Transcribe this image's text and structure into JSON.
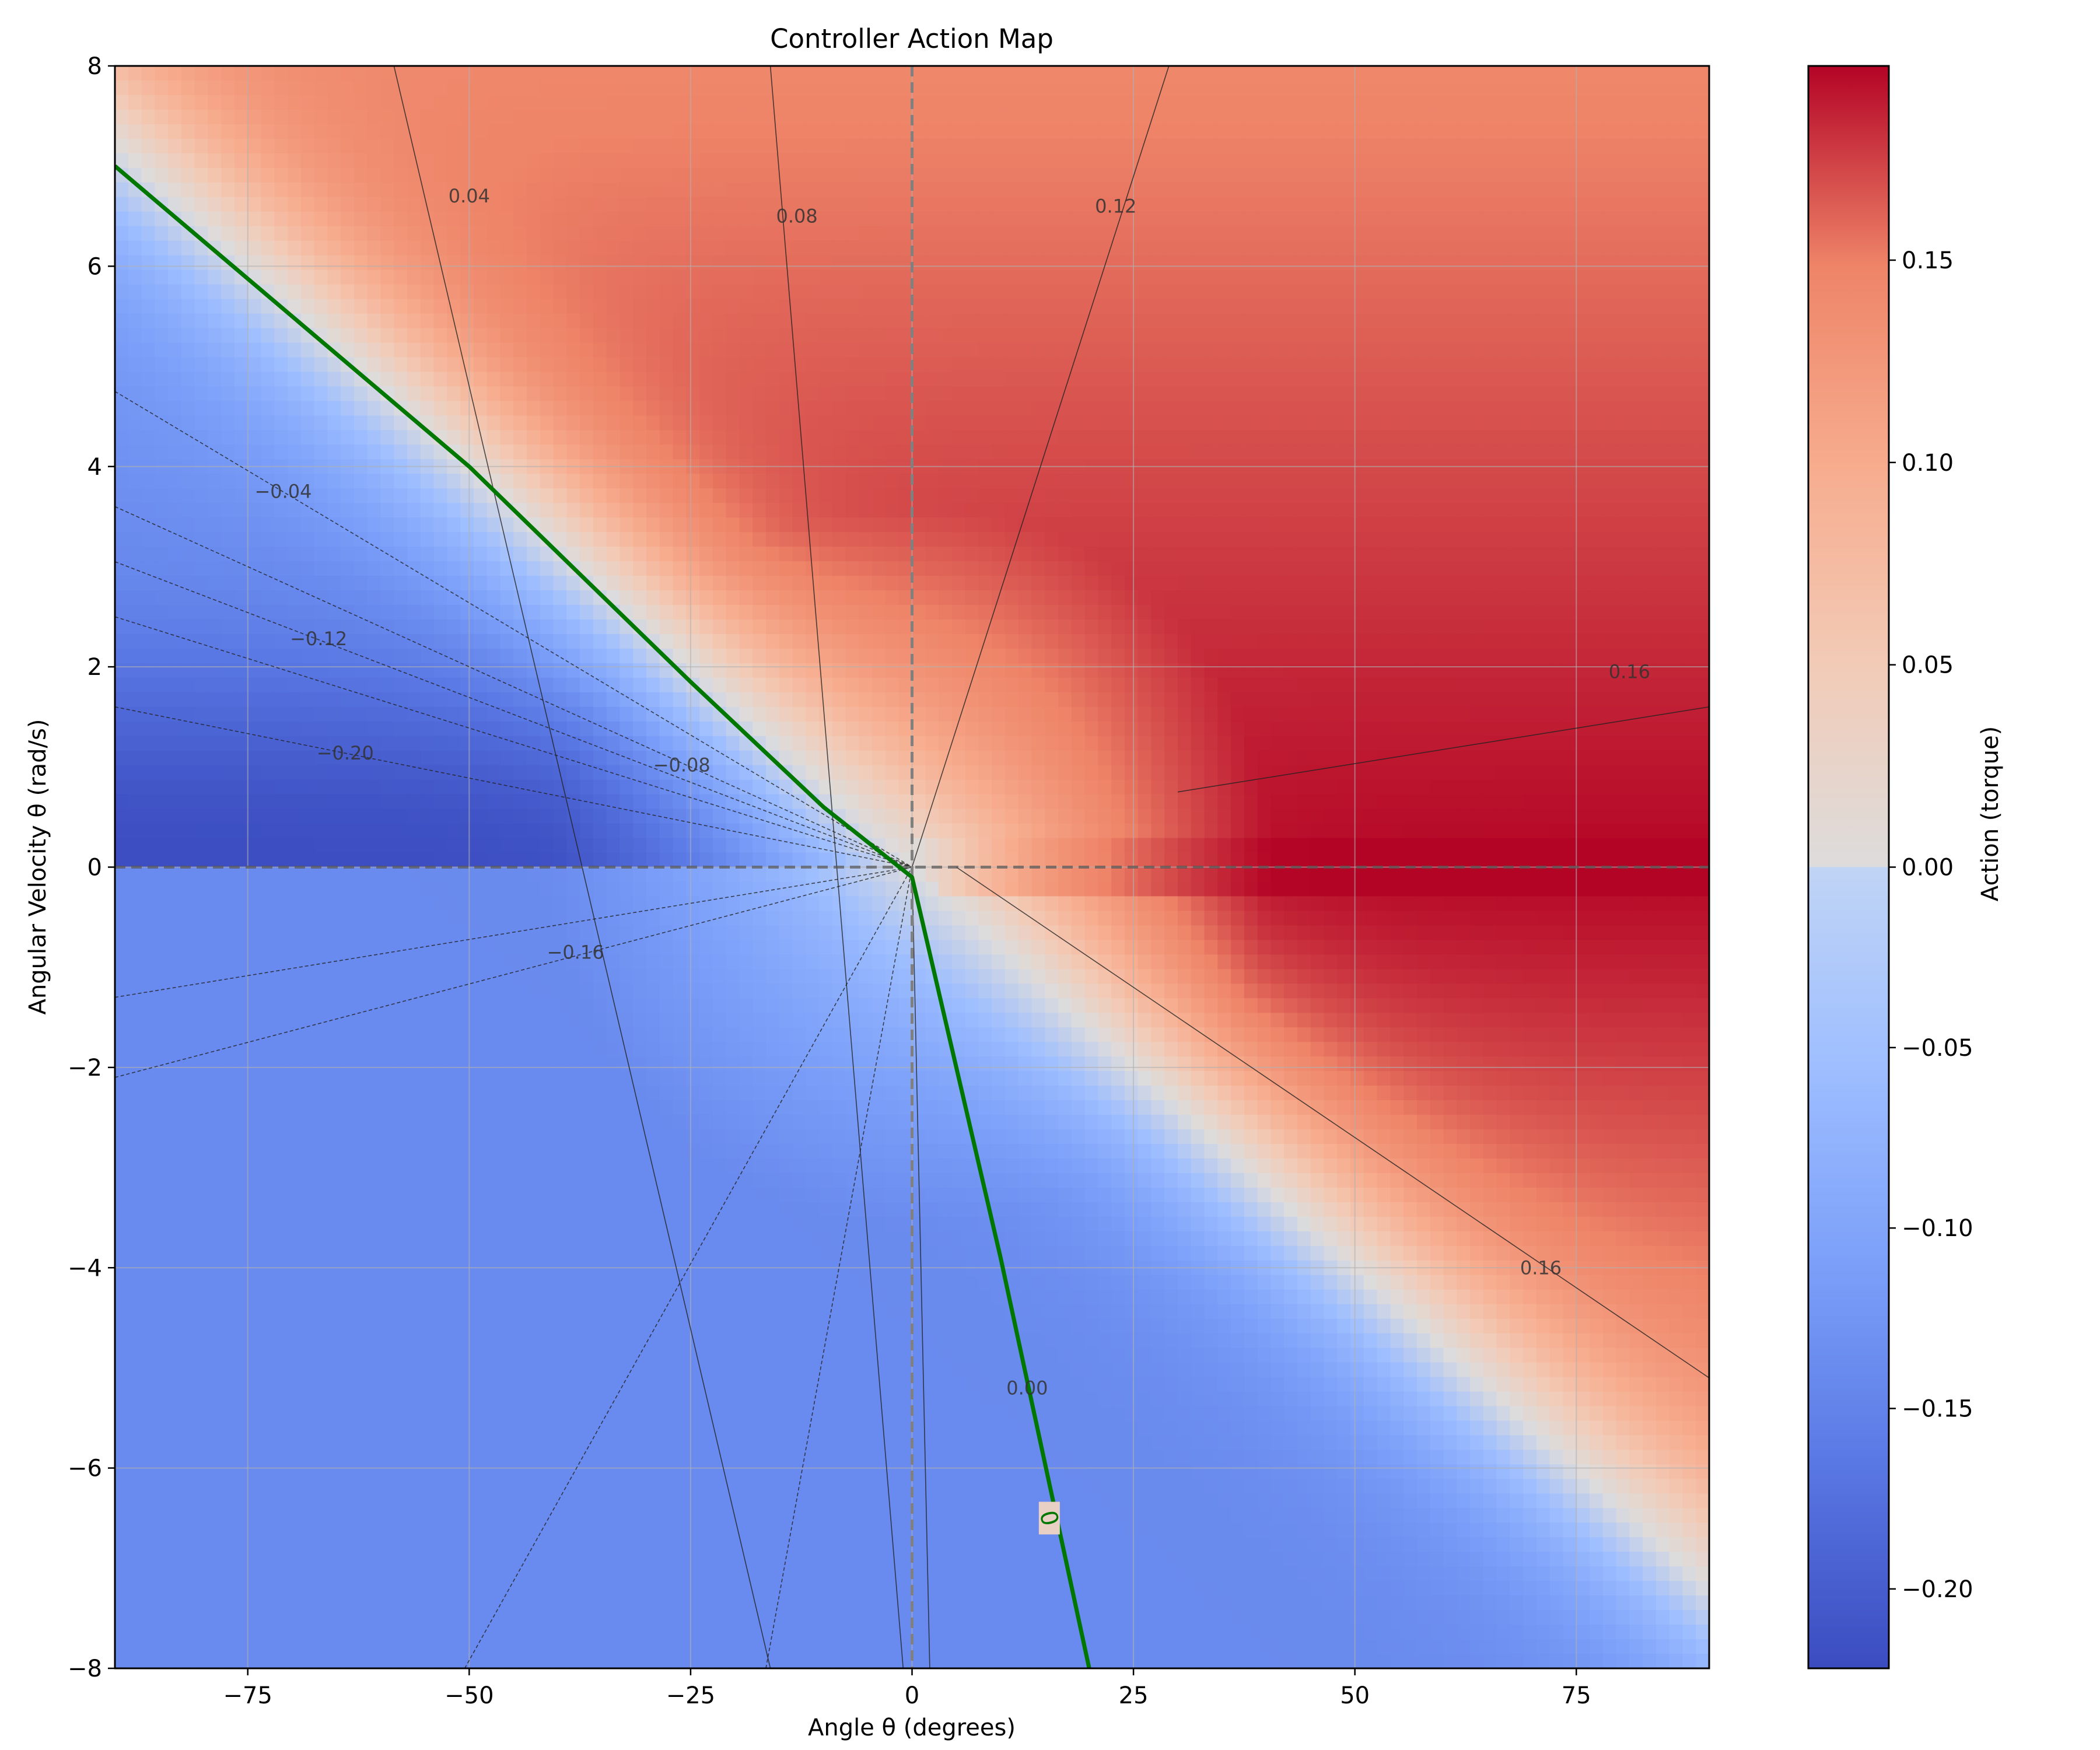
{
  "chart_data": {
    "type": "heatmap",
    "title": "Controller Action Map",
    "xlabel": "Angle θ (degrees)",
    "ylabel": "Angular Velocity θ (rad/s)",
    "xlim": [
      -90,
      90
    ],
    "ylim": [
      -8,
      8
    ],
    "xticks": [
      -75,
      -50,
      -25,
      0,
      25,
      50,
      75
    ],
    "yticks": [
      -8,
      -6,
      -4,
      -2,
      0,
      2,
      4,
      6,
      8
    ],
    "xtick_labels": [
      "−75",
      "−50",
      "−25",
      "0",
      "25",
      "50",
      "75"
    ],
    "ytick_labels": [
      "−8",
      "−6",
      "−4",
      "−2",
      "0",
      "2",
      "4",
      "6",
      "8"
    ],
    "grid": true,
    "colormap": "coolwarm",
    "colorbar": {
      "label": "Action (torque)",
      "range": [
        -0.222,
        0.198
      ],
      "ticks": [
        -0.2,
        -0.15,
        -0.1,
        -0.05,
        0.0,
        0.05,
        0.1,
        0.15
      ],
      "tick_labels": [
        "−0.20",
        "−0.15",
        "−0.10",
        "−0.05",
        "0.00",
        "0.05",
        "0.10",
        "0.15"
      ]
    },
    "reference_lines": [
      {
        "orientation": "vertical",
        "x": 0,
        "style": "dashed",
        "color": "#808080"
      },
      {
        "orientation": "horizontal",
        "y": 0,
        "style": "dashed",
        "color": "#555555"
      }
    ],
    "zero_contour": {
      "color": "#007700",
      "label": "0",
      "points": [
        [
          -90,
          7.0
        ],
        [
          -50,
          4.0
        ],
        [
          -25,
          1.85
        ],
        [
          -10,
          0.6
        ],
        [
          -5,
          0.25
        ],
        [
          0,
          -0.1
        ],
        [
          10,
          -3.9
        ],
        [
          20,
          -8.0
        ]
      ]
    },
    "contour_labels": [
      {
        "text": "0.04",
        "x": -50,
        "y": 6.7
      },
      {
        "text": "0.08",
        "x": -13,
        "y": 6.5
      },
      {
        "text": "0.12",
        "x": 23,
        "y": 6.6
      },
      {
        "text": "0.16",
        "x": 81,
        "y": 1.95
      },
      {
        "text": "0.16",
        "x": 71,
        "y": -4.0
      },
      {
        "text": "0.00",
        "x": 13,
        "y": -5.2
      },
      {
        "text": "−0.04",
        "x": -71,
        "y": 3.75
      },
      {
        "text": "−0.08",
        "x": -26,
        "y": 1.02
      },
      {
        "text": "−0.12",
        "x": -67,
        "y": 2.28
      },
      {
        "text": "−0.16",
        "x": -38,
        "y": -0.85
      },
      {
        "text": "−0.20",
        "x": -64,
        "y": 1.14
      }
    ],
    "contours": [
      {
        "level": 0.04,
        "points": [
          [
            -58.5,
            8
          ],
          [
            -16,
            -8
          ]
        ]
      },
      {
        "level": 0.08,
        "points": [
          [
            -16,
            8
          ],
          [
            -1,
            -8
          ]
        ]
      },
      {
        "level": 0.12,
        "points": [
          [
            29,
            8
          ],
          [
            0,
            0
          ]
        ]
      },
      {
        "level": 0.16,
        "points": [
          [
            90,
            -5.1
          ],
          [
            5,
            0
          ]
        ]
      },
      {
        "level": 0.16,
        "points": [
          [
            30,
            0.75
          ],
          [
            90,
            1.6
          ]
        ]
      },
      {
        "level": -0.04,
        "points": [
          [
            -90,
            4.75
          ],
          [
            0,
            0
          ]
        ]
      },
      {
        "level": -0.08,
        "points": [
          [
            -90,
            3.6
          ],
          [
            0,
            0
          ]
        ]
      },
      {
        "level": -0.12,
        "points": [
          [
            -90,
            3.05
          ],
          [
            0,
            0
          ]
        ]
      },
      {
        "level": -0.16,
        "points": [
          [
            -90,
            2.5
          ],
          [
            0,
            0
          ]
        ]
      },
      {
        "level": -0.2,
        "points": [
          [
            -90,
            1.6
          ],
          [
            0,
            0
          ]
        ]
      },
      {
        "level": -0.16,
        "points": [
          [
            -90,
            -1.3
          ],
          [
            0,
            0
          ]
        ]
      },
      {
        "level": -0.12,
        "points": [
          [
            -90,
            -2.1
          ],
          [
            0,
            0
          ]
        ]
      },
      {
        "level": -0.08,
        "points": [
          [
            -50.5,
            -8
          ],
          [
            0,
            0
          ]
        ]
      },
      {
        "level": -0.04,
        "points": [
          [
            -16.5,
            -8
          ],
          [
            0,
            0
          ]
        ]
      },
      {
        "level": 0.0,
        "points": [
          [
            2,
            -8
          ],
          [
            0,
            0
          ]
        ]
      }
    ]
  }
}
